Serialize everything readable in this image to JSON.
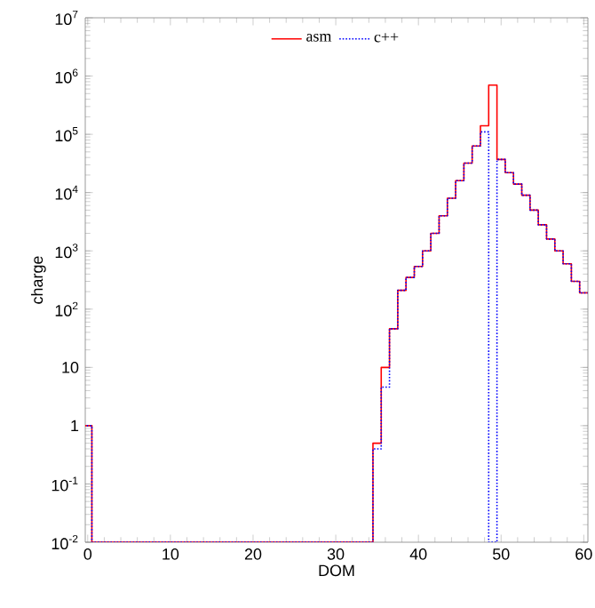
{
  "chart_data": {
    "type": "histogram",
    "xlabel": "DOM",
    "ylabel": "charge",
    "log": "y",
    "bins": [
      -0.5,
      0.5,
      1.5,
      2.5,
      3.5,
      4.5,
      5.5,
      6.5,
      7.5,
      8.5,
      9.5,
      10.5,
      11.5,
      12.5,
      13.5,
      14.5,
      15.5,
      16.5,
      17.5,
      18.5,
      19.5,
      20.5,
      21.5,
      22.5,
      23.5,
      24.5,
      25.5,
      26.5,
      27.5,
      28.5,
      29.5,
      30.5,
      31.5,
      32.5,
      33.5,
      34.5,
      35.5,
      36.5,
      37.5,
      38.5,
      39.5,
      40.5,
      41.5,
      42.5,
      43.5,
      44.5,
      45.5,
      46.5,
      47.5,
      48.5,
      49.5,
      50.5,
      51.5,
      52.5,
      53.5,
      54.5,
      55.5,
      56.5,
      57.5,
      58.5,
      59.5,
      60.5
    ],
    "series": [
      {
        "name": "asm",
        "color": "#ff0000",
        "line_style": "solid",
        "values": [
          1,
          0.01,
          0.01,
          0.01,
          0.01,
          0.01,
          0.01,
          0.01,
          0.01,
          0.01,
          0.01,
          0.01,
          0.01,
          0.01,
          0.01,
          0.01,
          0.01,
          0.01,
          0.01,
          0.01,
          0.01,
          0.01,
          0.01,
          0.01,
          0.01,
          0.01,
          0.01,
          0.01,
          0.01,
          0.01,
          0.01,
          0.01,
          0.01,
          0.01,
          0.01,
          0.5,
          10,
          46,
          210,
          350,
          540,
          1000,
          2000,
          4000,
          8000,
          16000,
          32000,
          63000,
          140000,
          700000,
          37000,
          22000,
          14000,
          9000,
          5000,
          2800,
          1600,
          1000,
          600,
          300,
          190
        ]
      },
      {
        "name": "c++",
        "color": "#0000ff",
        "line_style": "dotted",
        "values": [
          1,
          0.01,
          0.01,
          0.01,
          0.01,
          0.01,
          0.01,
          0.01,
          0.01,
          0.01,
          0.01,
          0.01,
          0.01,
          0.01,
          0.01,
          0.01,
          0.01,
          0.01,
          0.01,
          0.01,
          0.01,
          0.01,
          0.01,
          0.01,
          0.01,
          0.01,
          0.01,
          0.01,
          0.01,
          0.01,
          0.01,
          0.01,
          0.01,
          0.01,
          0.01,
          0.4,
          4.6,
          46,
          210,
          350,
          540,
          1000,
          2000,
          4000,
          8000,
          16000,
          32000,
          63000,
          110000,
          0.01,
          37000,
          22000,
          14000,
          9000,
          5000,
          2800,
          1600,
          1000,
          600,
          300,
          190
        ]
      }
    ],
    "xlim": [
      -0.3,
      60.5
    ],
    "xticks": [
      0,
      10,
      20,
      30,
      40,
      50,
      60
    ],
    "ylim": [
      0.01,
      10000000
    ],
    "yticks": [
      {
        "value": 0.01,
        "label": "10$^{-2}$"
      },
      {
        "value": 0.1,
        "label": "10$^{-1}$"
      },
      1,
      10,
      {
        "value": 100,
        "label": "10$^{2}$"
      },
      {
        "value": 1000,
        "label": "10$^{3}$"
      },
      {
        "value": 10000,
        "label": "10$^{4}$"
      },
      {
        "value": 100000,
        "label": "10$^{5}$"
      },
      {
        "value": 1000000,
        "label": "10$^{6}$"
      },
      {
        "value": 10000000,
        "label": "10$^{7}$"
      }
    ],
    "legend": "top",
    "grid": false
  }
}
